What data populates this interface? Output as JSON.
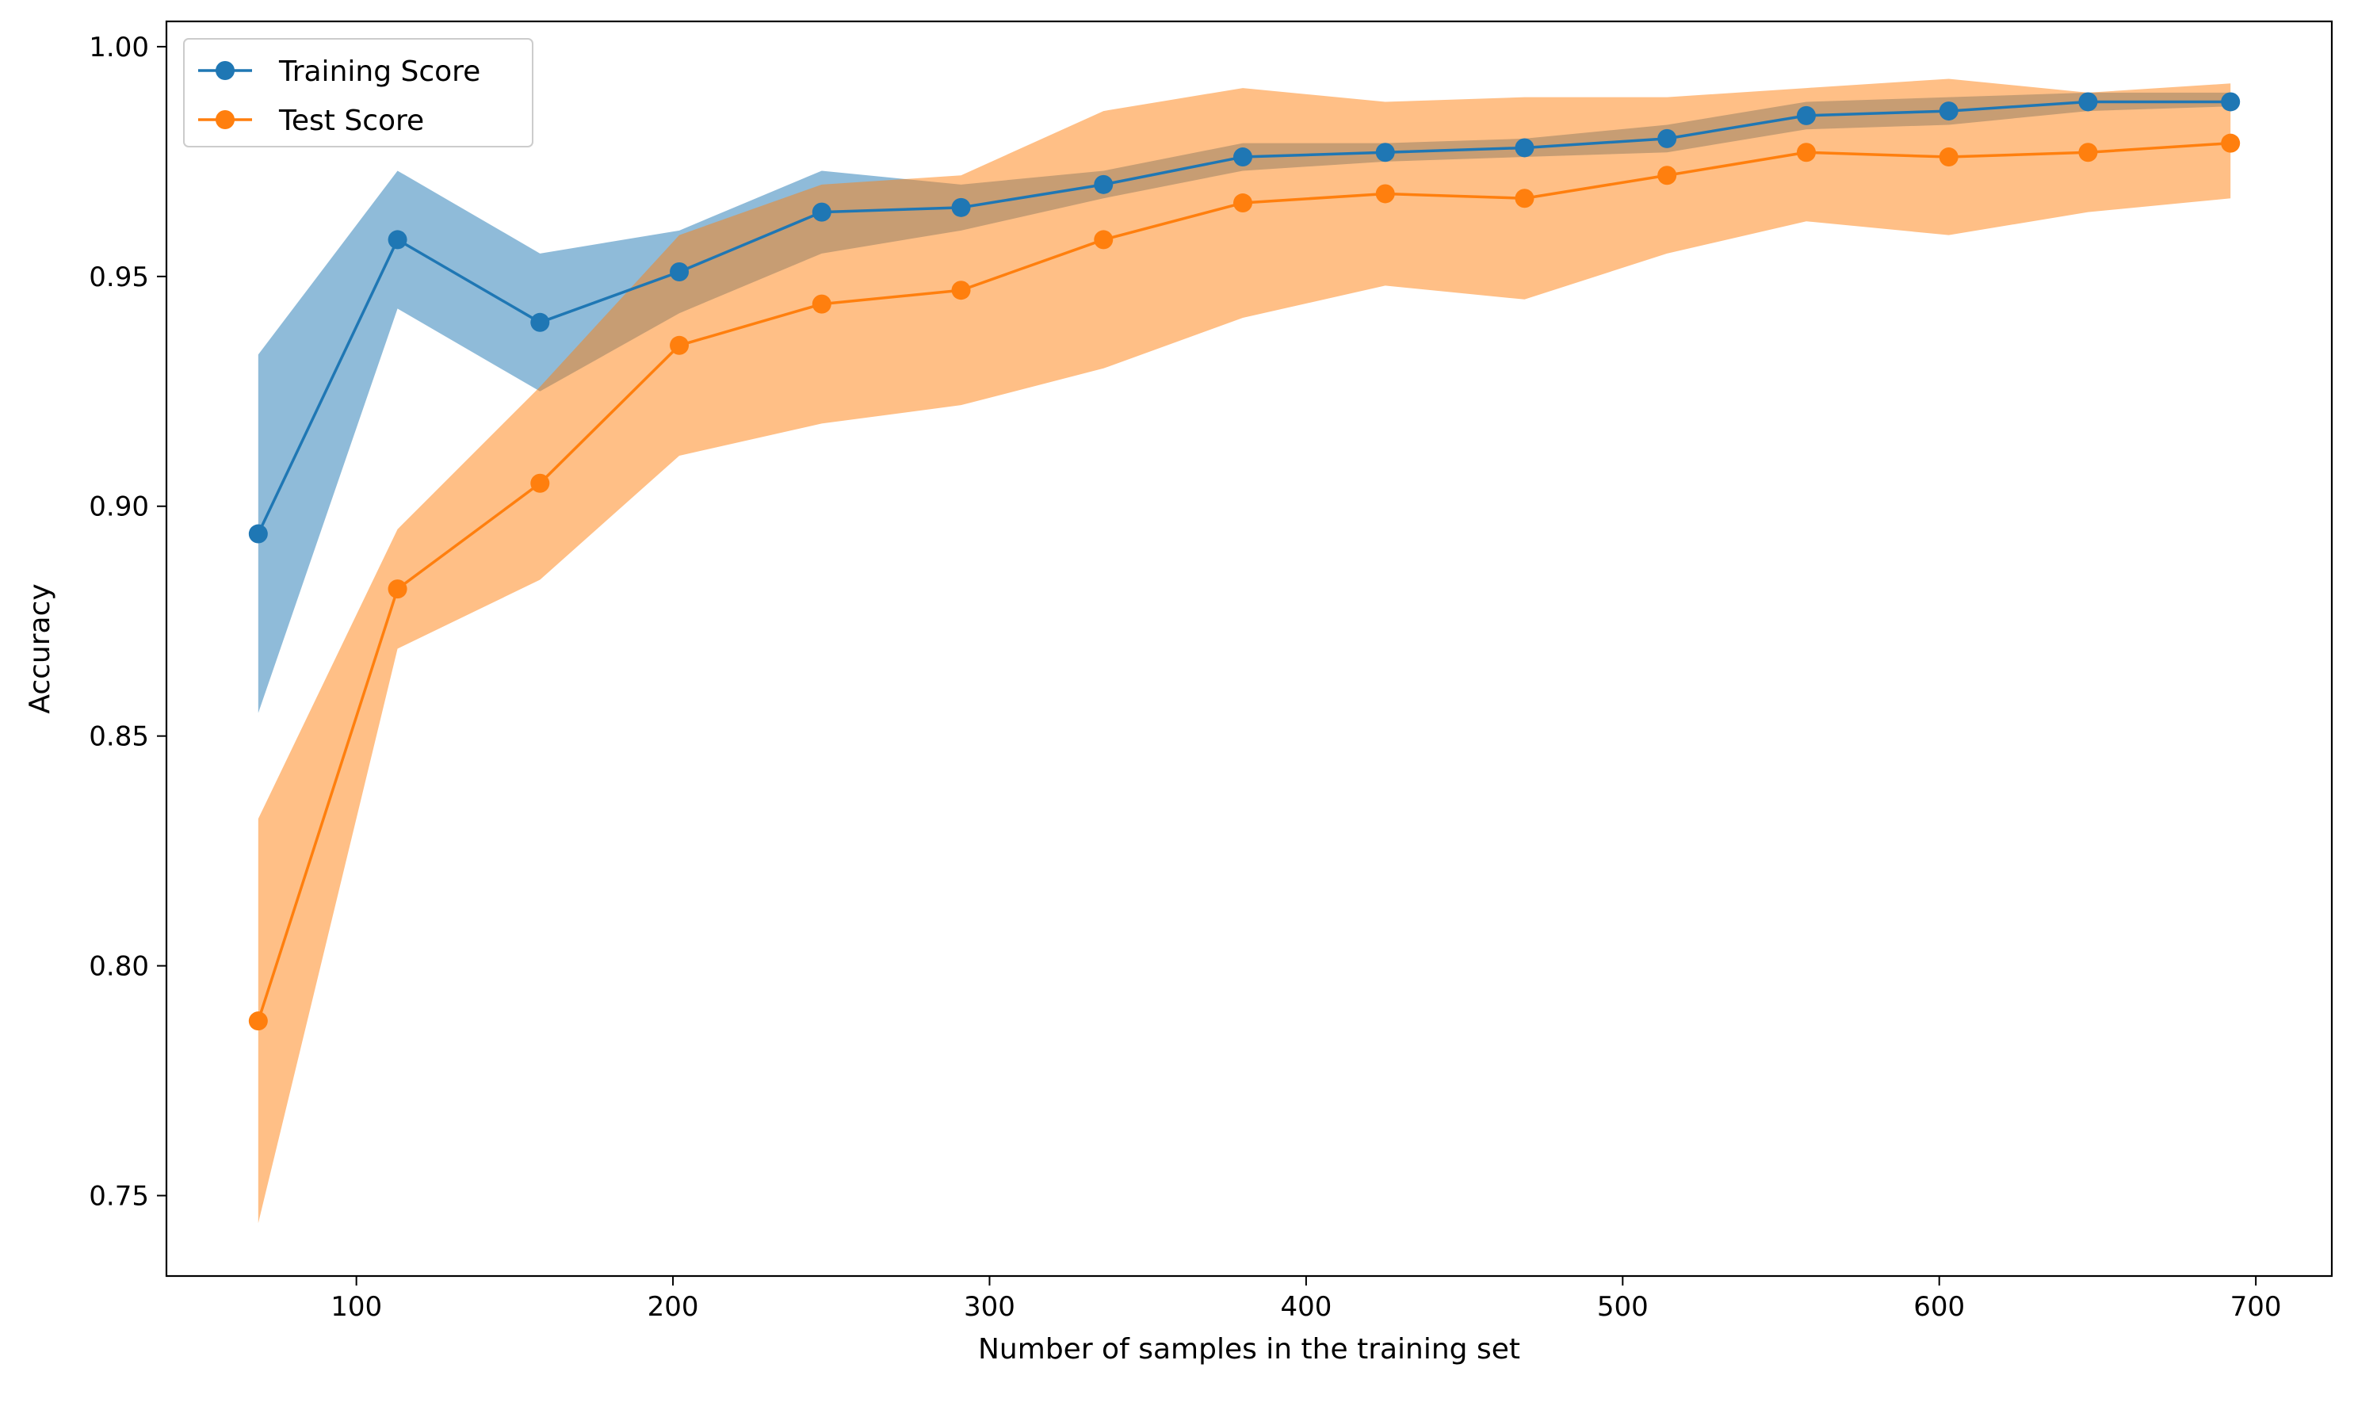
{
  "chart_data": {
    "type": "line",
    "xlabel": "Number of samples in the training set",
    "ylabel": "Accuracy",
    "xlim": [
      40,
      724
    ],
    "ylim": [
      0.7325,
      1.0055
    ],
    "xticks": [
      100,
      200,
      300,
      400,
      500,
      600,
      700
    ],
    "yticks": [
      0.75,
      0.8,
      0.85,
      0.9,
      0.95,
      1.0
    ],
    "xtick_labels": [
      "100",
      "200",
      "300",
      "400",
      "500",
      "600",
      "700"
    ],
    "ytick_labels": [
      "0.75",
      "0.80",
      "0.85",
      "0.90",
      "0.95",
      "1.00"
    ],
    "grid": false,
    "legend_position": "top-left",
    "x": [
      69,
      113,
      158,
      202,
      247,
      291,
      336,
      380,
      425,
      469,
      514,
      558,
      603,
      647,
      692
    ],
    "series": [
      {
        "name": "Training Score",
        "color": "#1f77b4",
        "band_color": "#1f77b4",
        "values": [
          0.894,
          0.958,
          0.94,
          0.951,
          0.964,
          0.965,
          0.97,
          0.976,
          0.977,
          0.978,
          0.98,
          0.985,
          0.986,
          0.988,
          0.988
        ],
        "band_lower": [
          0.855,
          0.943,
          0.925,
          0.942,
          0.955,
          0.96,
          0.967,
          0.973,
          0.975,
          0.976,
          0.977,
          0.982,
          0.983,
          0.986,
          0.987
        ],
        "band_upper": [
          0.933,
          0.973,
          0.955,
          0.96,
          0.973,
          0.97,
          0.973,
          0.979,
          0.979,
          0.98,
          0.983,
          0.988,
          0.989,
          0.99,
          0.99
        ]
      },
      {
        "name": "Test Score",
        "color": "#ff7f0e",
        "band_color": "#ff7f0e",
        "values": [
          0.788,
          0.882,
          0.905,
          0.935,
          0.944,
          0.947,
          0.958,
          0.966,
          0.968,
          0.967,
          0.972,
          0.977,
          0.976,
          0.977,
          0.979
        ],
        "band_lower": [
          0.744,
          0.869,
          0.884,
          0.911,
          0.918,
          0.922,
          0.93,
          0.941,
          0.948,
          0.945,
          0.955,
          0.962,
          0.959,
          0.964,
          0.967
        ],
        "band_upper": [
          0.832,
          0.895,
          0.926,
          0.959,
          0.97,
          0.972,
          0.986,
          0.991,
          0.988,
          0.989,
          0.989,
          0.991,
          0.993,
          0.99,
          0.992
        ]
      }
    ]
  }
}
